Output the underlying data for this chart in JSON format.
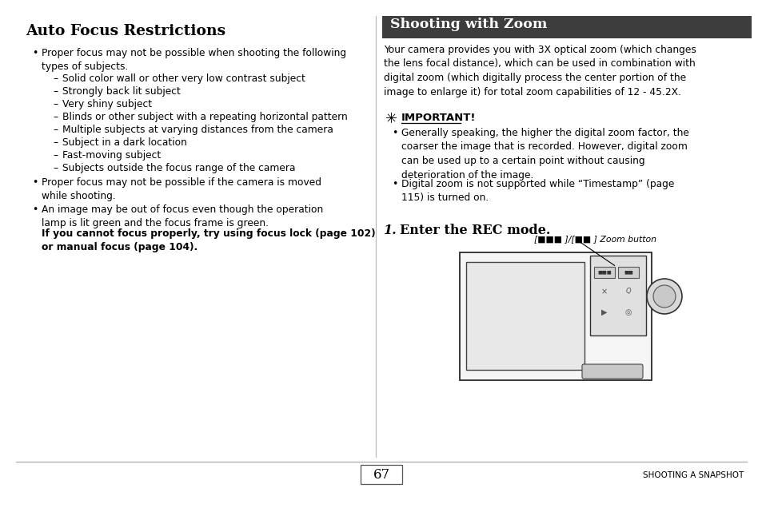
{
  "page_bg": "#ffffff",
  "left_title": "Auto Focus Restrictions",
  "left_bullet1": "Proper focus may not be possible when shooting the following\ntypes of subjects.",
  "left_subbullets": [
    "Solid color wall or other very low contrast subject",
    "Strongly back lit subject",
    "Very shiny subject",
    "Blinds or other subject with a repeating horizontal pattern",
    "Multiple subjects at varying distances from the camera",
    "Subject in a dark location",
    "Fast-moving subject",
    "Subjects outside the focus range of the camera"
  ],
  "left_bullet2": "Proper focus may not be possible if the camera is moved\nwhile shooting.",
  "left_bullet3a": "An image may be out of focus even though the operation\nlamp is lit green and the focus frame is green.",
  "left_bullet3b": "If you cannot focus properly, try using focus lock (page 102)\nor manual focus (page 104).",
  "right_header_text": "Shooting with Zoom",
  "right_header_bg": "#3d3d3d",
  "right_header_fg": "#ffffff",
  "right_intro": "Your camera provides you with 3X optical zoom (which changes\nthe lens focal distance), which can be used in combination with\ndigital zoom (which digitally process the center portion of the\nimage to enlarge it) for total zoom capabilities of 12 - 45.2X.",
  "important_label": "IMPORTANT!",
  "imp_b1": "Generally speaking, the higher the digital zoom factor, the\ncoarser the image that is recorded. However, digital zoom\ncan be used up to a certain point without causing\ndeterioration of the image.",
  "imp_b2": "Digital zoom is not supported while “Timestamp” (page\n115) is turned on.",
  "step1_text": "Enter the REC mode.",
  "zoom_caption": "[■■■ ]/[■■ ] Zoom button",
  "footer_line_color": "#aaaaaa",
  "footer_page": "67",
  "footer_right": "SHOOTING A SNAPSHOT"
}
